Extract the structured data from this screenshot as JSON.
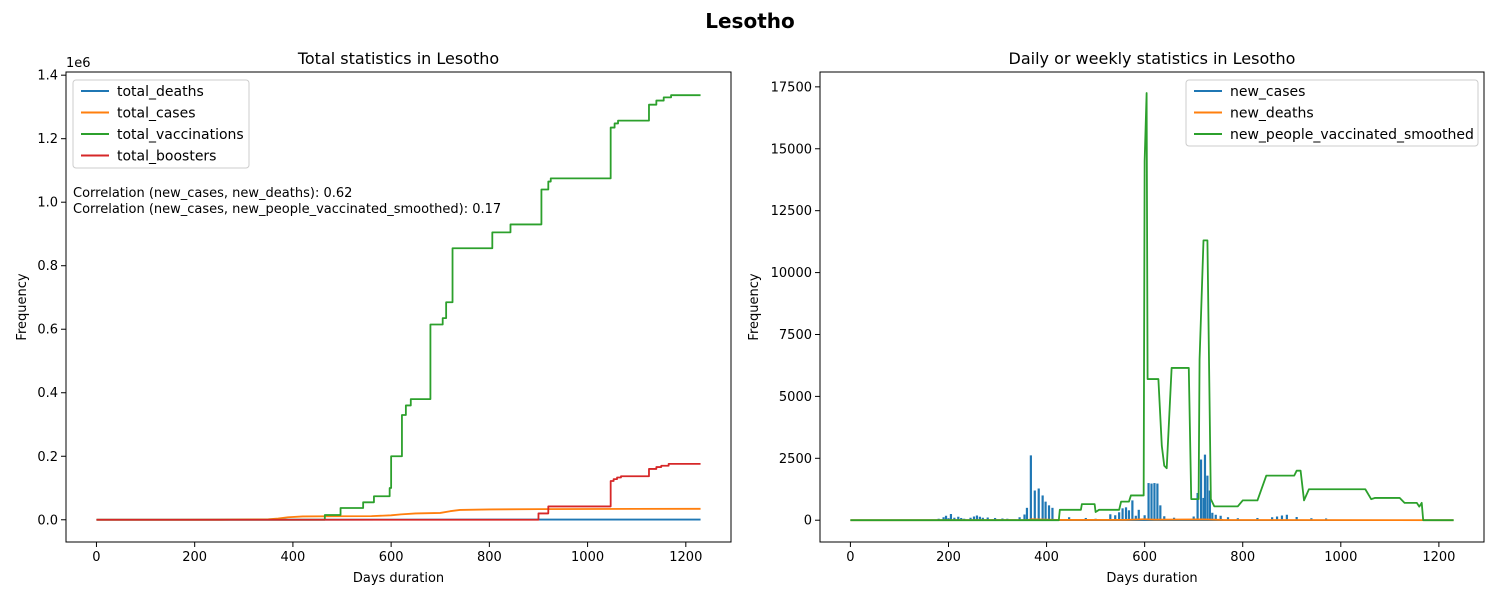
{
  "figure_title": "Lesotho",
  "chart_data": [
    {
      "type": "line",
      "title": "Total statistics in Lesotho",
      "xlabel": "Days duration",
      "ylabel": "Frequency",
      "offset_label": "1e6",
      "xlim": [
        -62,
        1292
      ],
      "ylim": [
        -70000,
        1410000
      ],
      "xticks": [
        0,
        200,
        400,
        600,
        800,
        1000,
        1200
      ],
      "xtick_labels": [
        "0",
        "200",
        "400",
        "600",
        "800",
        "1000",
        "1200"
      ],
      "yticks": [
        0,
        200000,
        400000,
        600000,
        800000,
        1000000,
        1200000,
        1400000
      ],
      "ytick_labels": [
        "0.0",
        "0.2",
        "0.4",
        "0.6",
        "0.8",
        "1.0",
        "1.2",
        "1.4"
      ],
      "legend_position": "top-left",
      "annotations": [
        "Correlation (new_cases, new_deaths): 0.62",
        "Correlation (new_cases, new_people_vaccinated_smoothed): 0.17"
      ],
      "series": [
        {
          "name": "total_deaths",
          "color": "#1f77b4",
          "step": false,
          "points": [
            [
              0,
              0
            ],
            [
              60,
              5
            ],
            [
              200,
              50
            ],
            [
              400,
              300
            ],
            [
              600,
              450
            ],
            [
              800,
              650
            ],
            [
              1000,
              700
            ],
            [
              1230,
              720
            ]
          ]
        },
        {
          "name": "total_cases",
          "color": "#ff7f0e",
          "step": false,
          "points": [
            [
              0,
              0
            ],
            [
              150,
              20
            ],
            [
              250,
              300
            ],
            [
              350,
              1500
            ],
            [
              370,
              4000
            ],
            [
              390,
              8000
            ],
            [
              420,
              10500
            ],
            [
              480,
              11000
            ],
            [
              560,
              11500
            ],
            [
              600,
              14000
            ],
            [
              620,
              17000
            ],
            [
              650,
              20000
            ],
            [
              700,
              21500
            ],
            [
              720,
              27000
            ],
            [
              740,
              31000
            ],
            [
              800,
              32500
            ],
            [
              900,
              33500
            ],
            [
              1000,
              34000
            ],
            [
              1230,
              34500
            ]
          ]
        },
        {
          "name": "total_vaccinations",
          "color": "#2ca02c",
          "step": true,
          "points": [
            [
              0,
              0
            ],
            [
              465,
              0
            ],
            [
              465,
              15000
            ],
            [
              497,
              15000
            ],
            [
              497,
              37000
            ],
            [
              543,
              37000
            ],
            [
              543,
              55000
            ],
            [
              565,
              55000
            ],
            [
              565,
              74000
            ],
            [
              597,
              74000
            ],
            [
              597,
              100000
            ],
            [
              600,
              100000
            ],
            [
              600,
              200000
            ],
            [
              622,
              200000
            ],
            [
              622,
              330000
            ],
            [
              630,
              330000
            ],
            [
              630,
              360000
            ],
            [
              640,
              360000
            ],
            [
              640,
              380000
            ],
            [
              680,
              380000
            ],
            [
              680,
              615000
            ],
            [
              705,
              615000
            ],
            [
              705,
              635000
            ],
            [
              712,
              635000
            ],
            [
              712,
              685000
            ],
            [
              725,
              685000
            ],
            [
              725,
              855000
            ],
            [
              806,
              855000
            ],
            [
              806,
              905000
            ],
            [
              843,
              905000
            ],
            [
              843,
              930000
            ],
            [
              906,
              930000
            ],
            [
              906,
              1040000
            ],
            [
              920,
              1040000
            ],
            [
              920,
              1065000
            ],
            [
              925,
              1065000
            ],
            [
              925,
              1075000
            ],
            [
              1047,
              1075000
            ],
            [
              1047,
              1235000
            ],
            [
              1055,
              1235000
            ],
            [
              1055,
              1248000
            ],
            [
              1062,
              1248000
            ],
            [
              1062,
              1257000
            ],
            [
              1125,
              1257000
            ],
            [
              1125,
              1307000
            ],
            [
              1140,
              1307000
            ],
            [
              1140,
              1320000
            ],
            [
              1155,
              1320000
            ],
            [
              1155,
              1330000
            ],
            [
              1170,
              1330000
            ],
            [
              1170,
              1337000
            ],
            [
              1230,
              1337000
            ]
          ]
        },
        {
          "name": "total_boosters",
          "color": "#d62728",
          "step": true,
          "points": [
            [
              0,
              0
            ],
            [
              900,
              0
            ],
            [
              900,
              20000
            ],
            [
              920,
              20000
            ],
            [
              920,
              42000
            ],
            [
              1047,
              42000
            ],
            [
              1047,
              122000
            ],
            [
              1053,
              122000
            ],
            [
              1053,
              128000
            ],
            [
              1060,
              128000
            ],
            [
              1060,
              133000
            ],
            [
              1068,
              133000
            ],
            [
              1068,
              137000
            ],
            [
              1125,
              137000
            ],
            [
              1125,
              160000
            ],
            [
              1140,
              160000
            ],
            [
              1140,
              166000
            ],
            [
              1150,
              166000
            ],
            [
              1150,
              170000
            ],
            [
              1165,
              170000
            ],
            [
              1165,
              176000
            ],
            [
              1230,
              176000
            ]
          ]
        }
      ]
    },
    {
      "type": "line",
      "title": "Daily or weekly statistics in Lesotho",
      "xlabel": "Days duration",
      "ylabel": "Frequency",
      "xlim": [
        -62,
        1292
      ],
      "ylim": [
        -880,
        18100
      ],
      "xticks": [
        0,
        200,
        400,
        600,
        800,
        1000,
        1200
      ],
      "xtick_labels": [
        "0",
        "200",
        "400",
        "600",
        "800",
        "1000",
        "1200"
      ],
      "yticks": [
        0,
        2500,
        5000,
        7500,
        10000,
        12500,
        15000,
        17500
      ],
      "ytick_labels": [
        "0",
        "2500",
        "5000",
        "7500",
        "10000",
        "12500",
        "15000",
        "17500"
      ],
      "legend_position": "top-right",
      "series": [
        {
          "name": "new_cases",
          "color": "#1f77b4",
          "step": false,
          "spikes": true,
          "points": [
            [
              180,
              60
            ],
            [
              190,
              120
            ],
            [
              195,
              180
            ],
            [
              200,
              80
            ],
            [
              205,
              250
            ],
            [
              212,
              100
            ],
            [
              220,
              140
            ],
            [
              226,
              90
            ],
            [
              232,
              60
            ],
            [
              245,
              100
            ],
            [
              252,
              150
            ],
            [
              258,
              190
            ],
            [
              264,
              140
            ],
            [
              270,
              100
            ],
            [
              280,
              110
            ],
            [
              295,
              90
            ],
            [
              310,
              70
            ],
            [
              320,
              60
            ],
            [
              345,
              120
            ],
            [
              355,
              230
            ],
            [
              360,
              500
            ],
            [
              368,
              2620
            ],
            [
              376,
              1200
            ],
            [
              384,
              1280
            ],
            [
              392,
              1000
            ],
            [
              398,
              750
            ],
            [
              405,
              600
            ],
            [
              412,
              500
            ],
            [
              446,
              120
            ],
            [
              480,
              90
            ],
            [
              500,
              60
            ],
            [
              530,
              240
            ],
            [
              540,
              200
            ],
            [
              548,
              320
            ],
            [
              555,
              480
            ],
            [
              562,
              520
            ],
            [
              568,
              400
            ],
            [
              575,
              800
            ],
            [
              582,
              180
            ],
            [
              588,
              420
            ],
            [
              600,
              200
            ],
            [
              608,
              1500
            ],
            [
              614,
              1480
            ],
            [
              620,
              1500
            ],
            [
              626,
              1480
            ],
            [
              632,
              600
            ],
            [
              640,
              160
            ],
            [
              660,
              100
            ],
            [
              700,
              150
            ],
            [
              708,
              1100
            ],
            [
              715,
              2450
            ],
            [
              720,
              900
            ],
            [
              723,
              2650
            ],
            [
              728,
              1800
            ],
            [
              733,
              1200
            ],
            [
              738,
              300
            ],
            [
              745,
              220
            ],
            [
              755,
              180
            ],
            [
              770,
              120
            ],
            [
              790,
              80
            ],
            [
              830,
              90
            ],
            [
              860,
              120
            ],
            [
              870,
              150
            ],
            [
              880,
              190
            ],
            [
              890,
              220
            ],
            [
              910,
              130
            ],
            [
              940,
              80
            ],
            [
              970,
              70
            ]
          ]
        },
        {
          "name": "new_deaths",
          "color": "#ff7f0e",
          "step": false,
          "points": [
            [
              0,
              0
            ],
            [
              360,
              5
            ],
            [
              370,
              40
            ],
            [
              390,
              30
            ],
            [
              420,
              10
            ],
            [
              560,
              15
            ],
            [
              600,
              40
            ],
            [
              620,
              25
            ],
            [
              720,
              35
            ],
            [
              760,
              10
            ],
            [
              1230,
              0
            ]
          ]
        },
        {
          "name": "new_people_vaccinated_smoothed",
          "color": "#2ca02c",
          "step": false,
          "points": [
            [
              0,
              0
            ],
            [
              425,
              0
            ],
            [
              427,
              420
            ],
            [
              470,
              420
            ],
            [
              472,
              650
            ],
            [
              498,
              650
            ],
            [
              500,
              330
            ],
            [
              507,
              420
            ],
            [
              548,
              420
            ],
            [
              552,
              750
            ],
            [
              568,
              750
            ],
            [
              572,
              1000
            ],
            [
              598,
              1000
            ],
            [
              600,
              14500
            ],
            [
              604,
              17250
            ],
            [
              606,
              5700
            ],
            [
              628,
              5700
            ],
            [
              635,
              3000
            ],
            [
              640,
              2200
            ],
            [
              645,
              2100
            ],
            [
              655,
              6150
            ],
            [
              690,
              6150
            ],
            [
              695,
              850
            ],
            [
              710,
              850
            ],
            [
              712,
              6500
            ],
            [
              720,
              11300
            ],
            [
              728,
              11300
            ],
            [
              735,
              850
            ],
            [
              742,
              560
            ],
            [
              788,
              560
            ],
            [
              790,
              560
            ],
            [
              800,
              800
            ],
            [
              830,
              800
            ],
            [
              848,
              1800
            ],
            [
              905,
              1800
            ],
            [
              910,
              2000
            ],
            [
              918,
              2000
            ],
            [
              925,
              800
            ],
            [
              935,
              1250
            ],
            [
              1050,
              1250
            ],
            [
              1062,
              850
            ],
            [
              1070,
              900
            ],
            [
              1120,
              900
            ],
            [
              1130,
              700
            ],
            [
              1155,
              700
            ],
            [
              1160,
              550
            ],
            [
              1165,
              700
            ],
            [
              1168,
              0
            ],
            [
              1230,
              0
            ]
          ]
        }
      ]
    }
  ]
}
